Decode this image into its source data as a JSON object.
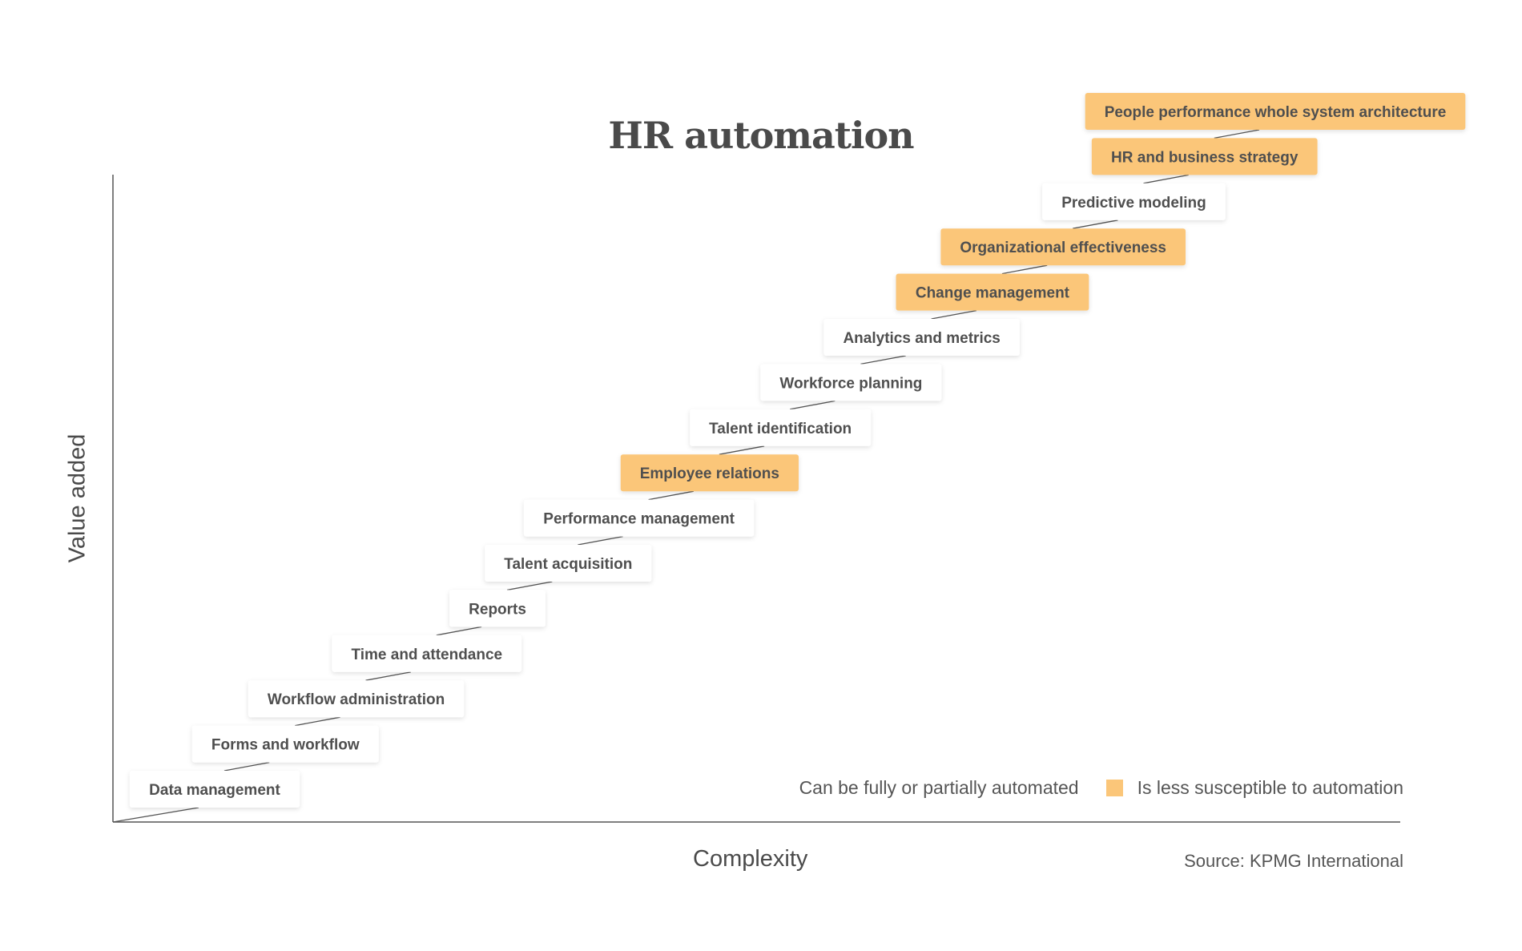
{
  "chart_data": {
    "type": "step",
    "title": "HR automation",
    "xlabel": "Complexity",
    "ylabel": "Value added",
    "source": "Source: KPMG International",
    "legend": {
      "placement": "bottom-right",
      "automated_label": "Can be fully or partially automated",
      "less_susceptible_label": "Is less susceptible to automation"
    },
    "colors": {
      "highlight": "#fbc679",
      "plain": "#ffffff",
      "axis": "#555555",
      "text": "#4f4f4f"
    },
    "steps": [
      {
        "label": "Data management",
        "rank": 1,
        "less_susceptible": false
      },
      {
        "label": "Forms and workflow",
        "rank": 2,
        "less_susceptible": false
      },
      {
        "label": "Workflow administration",
        "rank": 3,
        "less_susceptible": false
      },
      {
        "label": "Time and attendance",
        "rank": 4,
        "less_susceptible": false
      },
      {
        "label": "Reports",
        "rank": 5,
        "less_susceptible": false
      },
      {
        "label": "Talent acquisition",
        "rank": 6,
        "less_susceptible": false
      },
      {
        "label": "Performance management",
        "rank": 7,
        "less_susceptible": false
      },
      {
        "label": "Employee relations",
        "rank": 8,
        "less_susceptible": true
      },
      {
        "label": "Talent identification",
        "rank": 9,
        "less_susceptible": false
      },
      {
        "label": "Workforce planning",
        "rank": 10,
        "less_susceptible": false
      },
      {
        "label": "Analytics and metrics",
        "rank": 11,
        "less_susceptible": false
      },
      {
        "label": "Change management",
        "rank": 12,
        "less_susceptible": true
      },
      {
        "label": "Organizational effectiveness",
        "rank": 13,
        "less_susceptible": true
      },
      {
        "label": "Predictive modeling",
        "rank": 14,
        "less_susceptible": false
      },
      {
        "label": "HR and business strategy",
        "rank": 15,
        "less_susceptible": true
      },
      {
        "label": "People performance whole system architecture",
        "rank": 16,
        "less_susceptible": true
      }
    ]
  }
}
